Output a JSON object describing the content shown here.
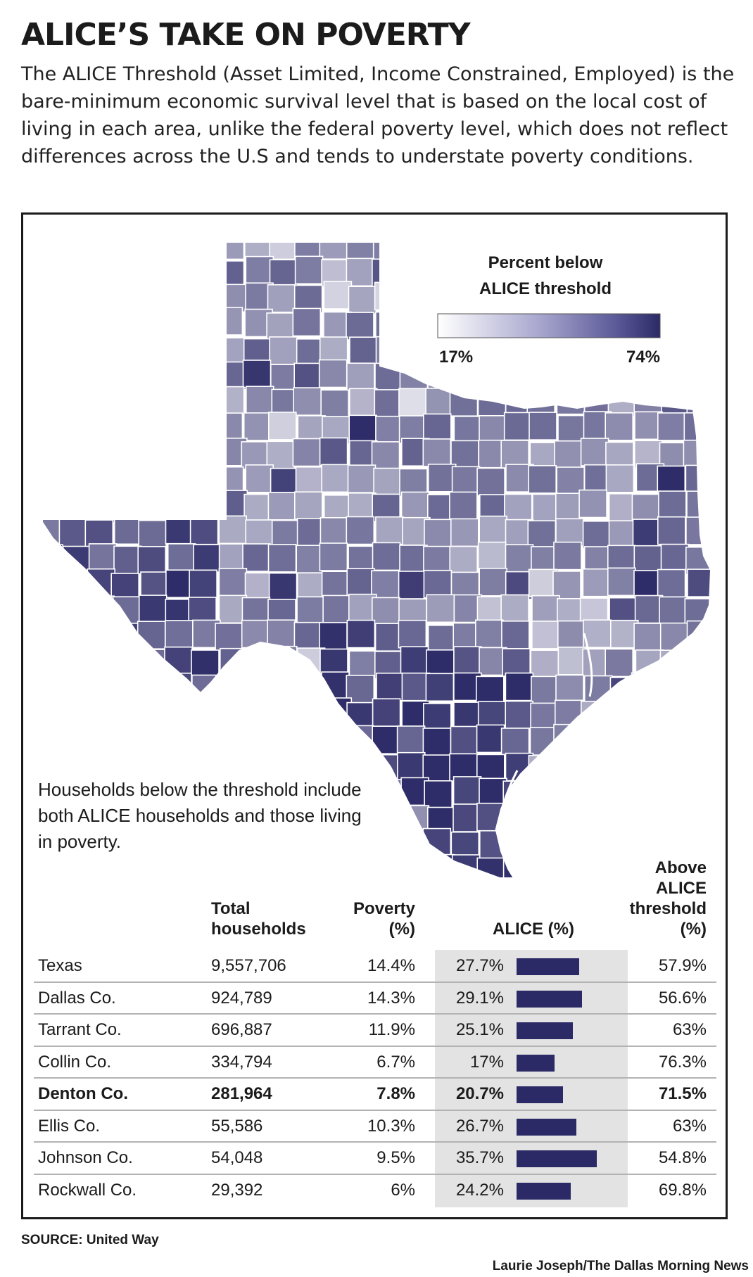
{
  "header": {
    "title": "ALICE’S TAKE ON POVERTY",
    "intro": "The ALICE Threshold (Asset Limited, Income Constrained, Employed) is the bare-minimum economic survival level that is based on the local cost of living in each area, unlike the federal poverty level, which does not reflect differences across the U.S and tends to understate poverty conditions."
  },
  "legend": {
    "title_line1": "Percent below",
    "title_line2": "ALICE threshold",
    "min_label": "17%",
    "max_label": "74%",
    "color_low": "#f4f4f9",
    "color_high": "#2b2966"
  },
  "note": "Households below the threshold include both ALICE households and those living in poverty.",
  "table": {
    "headers": {
      "total_l1": "Total",
      "total_l2": "households",
      "poverty_l1": "Poverty",
      "poverty_l2": "(%)",
      "alice": "ALICE (%)",
      "above_l1": "Above",
      "above_l2": "ALICE",
      "above_l3": "threshold",
      "above_l4": "(%)"
    }
  },
  "chart_data": [
    {
      "type": "map",
      "title": "Percent below ALICE threshold",
      "region": "Texas counties",
      "scale": {
        "min": 17,
        "max": 74,
        "unit": "%"
      }
    },
    {
      "type": "table",
      "columns": [
        "Total households",
        "Poverty (%)",
        "ALICE (%)",
        "Above ALICE threshold (%)"
      ],
      "rows": [
        {
          "name": "Texas",
          "total": "9,557,706",
          "poverty": "14.4%",
          "alice": "27.7%",
          "alice_value": 27.7,
          "above": "57.9%",
          "bold": false
        },
        {
          "name": "Dallas Co.",
          "total": "924,789",
          "poverty": "14.3%",
          "alice": "29.1%",
          "alice_value": 29.1,
          "above": "56.6%",
          "bold": false
        },
        {
          "name": "Tarrant Co.",
          "total": "696,887",
          "poverty": "11.9%",
          "alice": "25.1%",
          "alice_value": 25.1,
          "above": "63%",
          "bold": false
        },
        {
          "name": "Collin Co.",
          "total": "334,794",
          "poverty": "6.7%",
          "alice": "17%",
          "alice_value": 17.0,
          "above": "76.3%",
          "bold": false
        },
        {
          "name": "Denton Co.",
          "total": "281,964",
          "poverty": "7.8%",
          "alice": "20.7%",
          "alice_value": 20.7,
          "above": "71.5%",
          "bold": true
        },
        {
          "name": "Ellis Co.",
          "total": "55,586",
          "poverty": "10.3%",
          "alice": "26.7%",
          "alice_value": 26.7,
          "above": "63%",
          "bold": false
        },
        {
          "name": "Johnson Co.",
          "total": "54,048",
          "poverty": "9.5%",
          "alice": "35.7%",
          "alice_value": 35.7,
          "above": "54.8%",
          "bold": false
        },
        {
          "name": "Rockwall Co.",
          "total": "29,392",
          "poverty": "6%",
          "alice": "24.2%",
          "alice_value": 24.2,
          "above": "69.8%",
          "bold": false
        }
      ]
    }
  ],
  "footer": {
    "source": "SOURCE: United Way",
    "credit": "Laurie Joseph/The Dallas Morning News"
  }
}
